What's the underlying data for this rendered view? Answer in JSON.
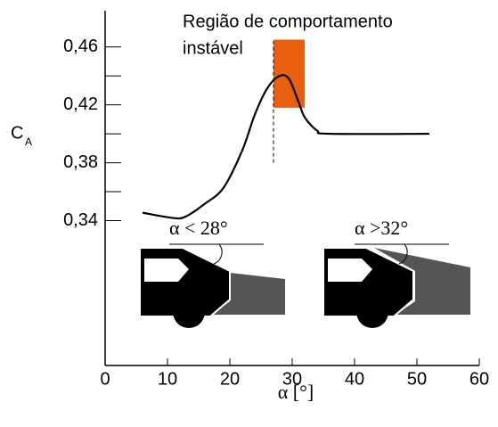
{
  "chart_data": {
    "type": "line",
    "annotation": [
      "Região de comportamento",
      "instável"
    ],
    "ylabel": {
      "main": "C",
      "subscript": "A"
    },
    "xlabel": "α [°]",
    "x": [
      6,
      11,
      13,
      16,
      19,
      22,
      24,
      26,
      28,
      29.5,
      31,
      32,
      34,
      36,
      52
    ],
    "values": [
      0.3455,
      0.3418,
      0.343,
      0.3517,
      0.3628,
      0.3886,
      0.4132,
      0.4314,
      0.44,
      0.4378,
      0.4222,
      0.4114,
      0.4022,
      0.4,
      0.4
    ],
    "color": "#000000",
    "xlim": [
      0,
      60
    ],
    "xticks": [
      0,
      10,
      20,
      30,
      40,
      50,
      60
    ],
    "ylim": [
      0.24,
      0.485
    ],
    "yticks": [
      {
        "value": 0.34,
        "label": "0,34"
      },
      {
        "value": 0.38,
        "label": "0,38"
      },
      {
        "value": 0.42,
        "label": "0,42"
      },
      {
        "value": 0.46,
        "label": "0,46"
      }
    ],
    "minor_yticks": [
      0.36,
      0.4,
      0.44
    ],
    "unstable_region": {
      "xlim": [
        27,
        32
      ],
      "ylim": [
        0.418,
        0.465
      ],
      "color": "#e8600f"
    },
    "threshold_line": {
      "x": 27,
      "ylim": [
        0.38,
        0.464
      ]
    },
    "car_labels": [
      "α < 28°",
      "α >32°"
    ]
  }
}
